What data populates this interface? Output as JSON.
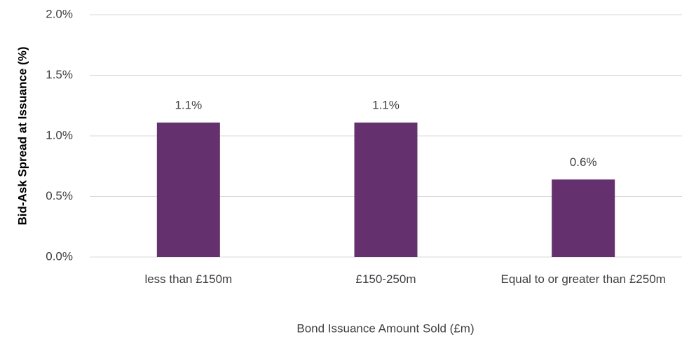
{
  "chart_data": {
    "type": "bar",
    "categories": [
      "less than £150m",
      "£150-250m",
      "Equal to or greater than £250m"
    ],
    "values": [
      1.11,
      1.11,
      0.64
    ],
    "value_labels": [
      "1.1%",
      "1.1%",
      "0.6%"
    ],
    "color": "#65306e",
    "x_label": "Bond Issuance Amount Sold (£m)",
    "y_label": "Bid-Ask Spread at Issuance (%)",
    "ylim": [
      0,
      2
    ],
    "yticks": [
      {
        "value": 0,
        "label": "0.0%"
      },
      {
        "value": 0.5,
        "label": "0.5%"
      },
      {
        "value": 1,
        "label": "1.0%"
      },
      {
        "value": 1.5,
        "label": "1.5%"
      },
      {
        "value": 2,
        "label": "2.0%"
      }
    ],
    "grid": true
  }
}
